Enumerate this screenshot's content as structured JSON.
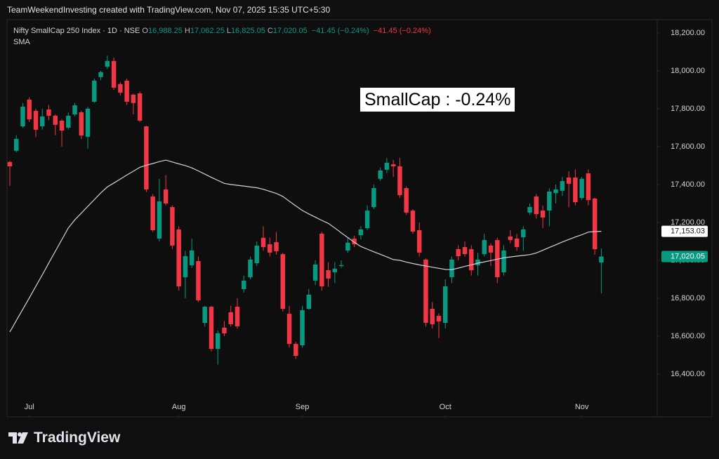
{
  "header_bar": "TeamWeekendInvesting created with TradingView.com, Nov 07, 2025 15:35 UTC+5:30",
  "footer": "TradingView",
  "chart_data": {
    "type": "candlestick",
    "symbol": "Nifty SmallCap 250 Index · 1D · NSE",
    "legend_values": [
      {
        "prefix": "O",
        "text": "16,988.25"
      },
      {
        "prefix": "H",
        "text": "17,062.25"
      },
      {
        "prefix": "L",
        "text": "16,825.05"
      },
      {
        "prefix": "C",
        "text": "17,020.05"
      }
    ],
    "change_texts": [
      {
        "text": "−41.45 (−0.24%)",
        "color": "#089981"
      },
      {
        "text": "−41.45 (−0.24%)",
        "color": "#f23645"
      }
    ],
    "indicator_name": "SMA",
    "annotation": "SmallCap : -0.24%",
    "up_color": "#089981",
    "down_color": "#f23645",
    "sma_color": "#d1d4dc",
    "grid": false,
    "xlim": [
      -0.43,
      99.6
    ],
    "xticks": [
      {
        "value": 3,
        "label": "Jul"
      },
      {
        "value": 26,
        "label": "Aug"
      },
      {
        "value": 45,
        "label": "Sep"
      },
      {
        "value": 67,
        "label": "Oct"
      },
      {
        "value": 88,
        "label": "Nov"
      }
    ],
    "ylim": [
      16174,
      18270
    ],
    "yticks": [
      {
        "value": 16400,
        "label": "16,400.00"
      },
      {
        "value": 16600,
        "label": "16,600.00"
      },
      {
        "value": 16800,
        "label": "16,800.00"
      },
      {
        "value": 17000,
        "label": "17,000.00"
      },
      {
        "value": 17200,
        "label": "17,200.00"
      },
      {
        "value": 17400,
        "label": "17,400.00"
      },
      {
        "value": 17600,
        "label": "17,600.00"
      },
      {
        "value": 17800,
        "label": "17,800.00"
      },
      {
        "value": 18000,
        "label": "18,000.00"
      },
      {
        "value": 18200,
        "label": "18,200.00"
      }
    ],
    "open": [
      17519,
      17578,
      17707,
      17848,
      17789,
      17707,
      17796,
      17763,
      17737,
      17700,
      17770,
      17781,
      17652,
      17837,
      17967,
      18022,
      18052,
      17930,
      17948,
      17874,
      17881,
      17707,
      17337,
      17115,
      17374,
      17281,
      17163,
      16911,
      16974,
      16996,
      16670,
      16755,
      16533,
      16645,
      16726,
      16755,
      16848,
      16911,
      16985,
      17119,
      17085,
      17096,
      17033,
      16718,
      16559,
      16552,
      16744,
      16893,
      17141,
      16948,
      16937,
      16970,
      17052,
      17115,
      17133,
      17170,
      17281,
      17430,
      17478,
      17507,
      17496,
      17381,
      17263,
      17159,
      17004,
      16744,
      16707,
      16670,
      16911,
      17059,
      17070,
      17059,
      16974,
      17033,
      17078,
      17107,
      16937,
      17126,
      17115,
      17122,
      17252,
      17337,
      17263,
      17263,
      17355,
      17367,
      17437,
      17437,
      17329,
      17459,
      17326,
      16988.25
    ],
    "high": [
      17525,
      17660,
      17830,
      17860,
      17800,
      17800,
      17820,
      17770,
      17745,
      17780,
      17830,
      17790,
      17810,
      17960,
      18000,
      18080,
      18070,
      17940,
      17960,
      17880,
      17890,
      17710,
      17350,
      17430,
      17450,
      17290,
      17180,
      17050,
      17115,
      17020,
      16760,
      16760,
      16630,
      16680,
      16760,
      16800,
      16920,
      17020,
      17100,
      17180,
      17120,
      17150,
      17040,
      16760,
      16570,
      16760,
      16850,
      17000,
      17150,
      16990,
      16990,
      17000,
      17120,
      17130,
      17180,
      17290,
      17400,
      17490,
      17540,
      17530,
      17540,
      17390,
      17270,
      17200,
      17010,
      16780,
      16720,
      16900,
      17020,
      17080,
      17100,
      17080,
      17040,
      17140,
      17090,
      17120,
      17080,
      17160,
      17140,
      17180,
      17300,
      17350,
      17290,
      17380,
      17400,
      17440,
      17470,
      17480,
      17440,
      17480,
      17330,
      17062.25
    ],
    "low": [
      17393,
      17570,
      17700,
      17730,
      17650,
      17690,
      17740,
      17660,
      17600,
      17690,
      17760,
      17640,
      17590,
      17830,
      17950,
      18010,
      17900,
      17870,
      17820,
      17770,
      17730,
      17360,
      17150,
      17100,
      17290,
      17060,
      16840,
      16800,
      16960,
      16780,
      16650,
      16520,
      16450,
      16600,
      16650,
      16640,
      16830,
      16900,
      16970,
      17050,
      17020,
      17030,
      16730,
      16540,
      16480,
      16540,
      16740,
      16870,
      16840,
      16860,
      16880,
      16960,
      17040,
      17070,
      17110,
      17160,
      17270,
      17420,
      17460,
      17440,
      17330,
      17240,
      17140,
      17020,
      16650,
      16640,
      16590,
      16640,
      16880,
      17000,
      17020,
      16920,
      16920,
      17020,
      16970,
      16880,
      16920,
      17090,
      17050,
      17050,
      17240,
      17220,
      17170,
      17180,
      17300,
      17340,
      17280,
      17290,
      17320,
      17290,
      17030,
      16825.05
    ],
    "close": [
      17496,
      17641,
      17811,
      17744,
      17689,
      17759,
      17763,
      17715,
      17685,
      17763,
      17818,
      17659,
      17800,
      17948,
      17993,
      18052,
      17911,
      17885,
      17837,
      17830,
      17737,
      17374,
      17159,
      17311,
      17300,
      17078,
      16863,
      17022,
      17052,
      16789,
      16755,
      16533,
      16615,
      16615,
      16663,
      16652,
      16893,
      17004,
      17078,
      17070,
      17041,
      17048,
      16744,
      16559,
      16496,
      16737,
      16819,
      16978,
      16863,
      16904,
      16956,
      16975,
      17093,
      17085,
      17163,
      17263,
      17381,
      17474,
      17515,
      17496,
      17344,
      17252,
      17152,
      17041,
      16670,
      16663,
      16678,
      16863,
      17004,
      17022,
      17033,
      16948,
      17004,
      17107,
      17041,
      16911,
      17052,
      17107,
      17070,
      17163,
      17281,
      17244,
      17226,
      17363,
      17374,
      17418,
      17404,
      17307,
      17430,
      17318,
      17059,
      17020.05
    ],
    "sma": [
      16622,
      16682,
      16742,
      16802,
      16863,
      16924,
      16986,
      17048,
      17109,
      17171,
      17214,
      17249,
      17285,
      17320,
      17356,
      17387,
      17408,
      17429,
      17450,
      17470,
      17491,
      17502,
      17511,
      17521,
      17529,
      17519,
      17509,
      17500,
      17488,
      17472,
      17455,
      17438,
      17422,
      17406,
      17400,
      17396,
      17392,
      17387,
      17383,
      17375,
      17364,
      17353,
      17337,
      17312,
      17287,
      17263,
      17245,
      17228,
      17211,
      17195,
      17171,
      17145,
      17120,
      17095,
      17073,
      17059,
      17045,
      17032,
      17018,
      17004,
      17000,
      16991,
      16983,
      16976,
      16970,
      16964,
      16958,
      16952,
      16951,
      16959,
      16968,
      16976,
      16985,
      16992,
      16999,
      17006,
      17013,
      17018,
      17022,
      17026,
      17030,
      17039,
      17053,
      17068,
      17082,
      17097,
      17110,
      17123,
      17135,
      17149,
      17152,
      17153.03
    ],
    "price_labels": [
      {
        "value": 17153.03,
        "label": "17,153.03",
        "bg": "#ffffff",
        "fg": "#131722"
      },
      {
        "value": 17020.05,
        "label": "17,020.05",
        "bg": "#089981",
        "fg": "#ffffff"
      }
    ]
  }
}
